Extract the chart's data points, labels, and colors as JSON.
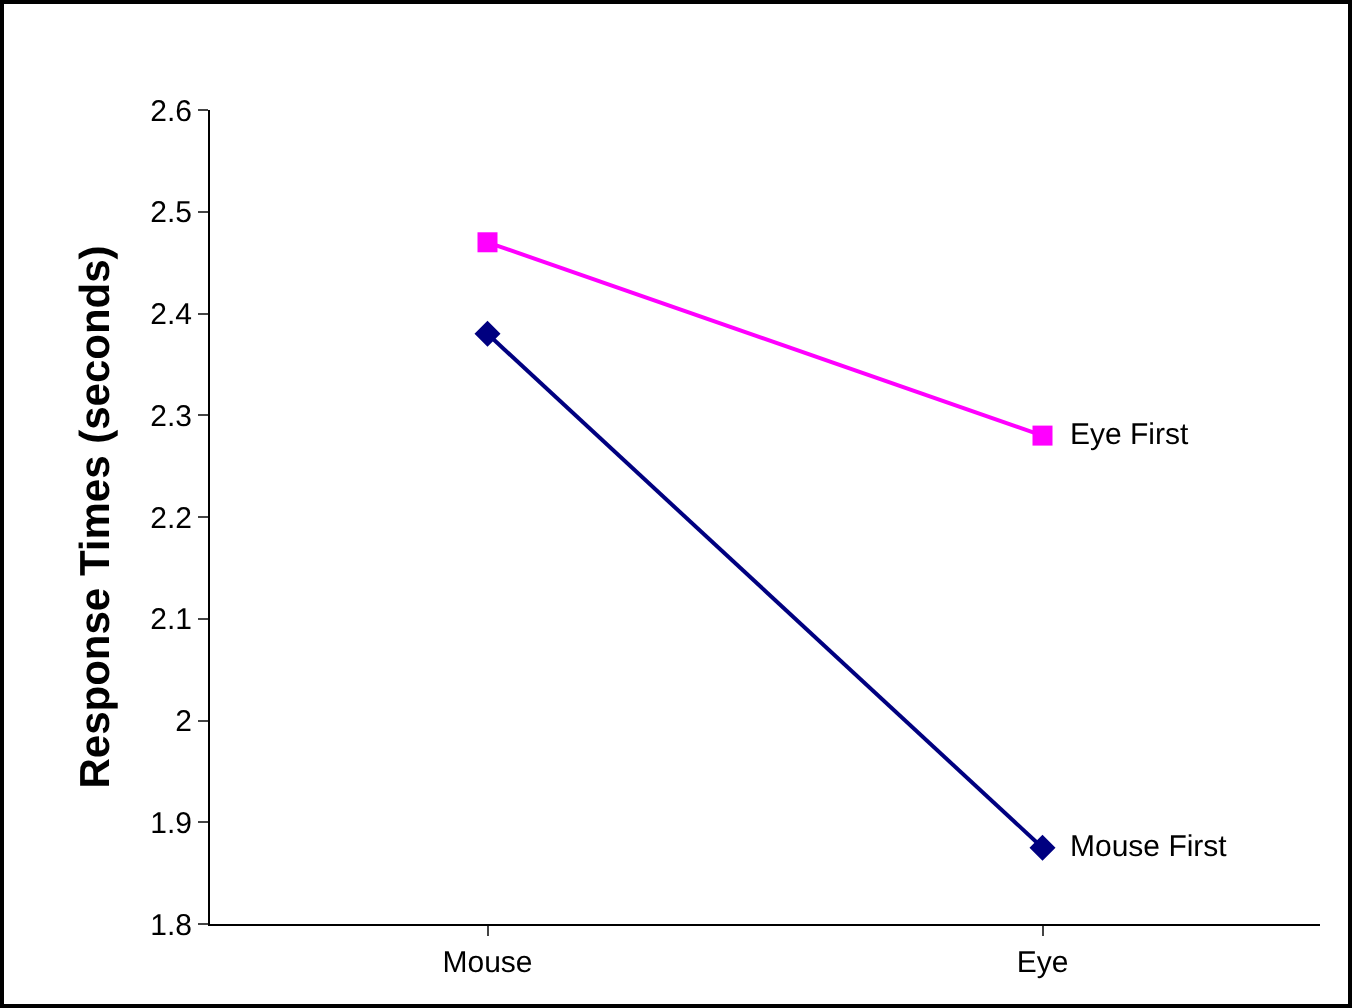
{
  "chart_data": {
    "type": "line",
    "ylabel": "Response Times (seconds)",
    "categories": [
      "Mouse",
      "Eye"
    ],
    "series": [
      {
        "name": "Eye First",
        "color": "#ff00ff",
        "marker": "square",
        "values": [
          2.47,
          2.28
        ]
      },
      {
        "name": "Mouse First",
        "color": "#000080",
        "marker": "diamond",
        "values": [
          2.38,
          1.875
        ]
      }
    ],
    "ylim": [
      1.8,
      2.6
    ],
    "yticks": [
      1.8,
      1.9,
      2,
      2.1,
      2.2,
      2.3,
      2.4,
      2.5,
      2.6
    ],
    "grid": false,
    "legend": false
  }
}
